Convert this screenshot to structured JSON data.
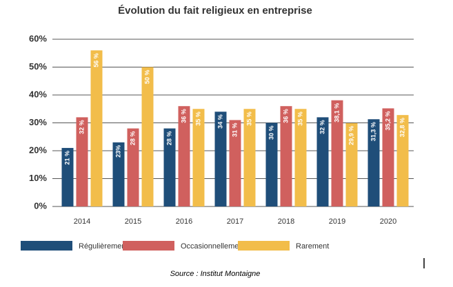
{
  "chart_data": {
    "type": "bar",
    "title": "Évolution du fait religieux en entreprise",
    "categories": [
      "2014",
      "2015",
      "2016",
      "2017",
      "2018",
      "2019",
      "2020"
    ],
    "series": [
      {
        "name": "Régulièrement",
        "color": "#1f4e79",
        "values": [
          21,
          23,
          28,
          34,
          30,
          32,
          31.3
        ],
        "value_labels": [
          "21 %",
          "23%",
          "28 %",
          "34 %",
          "30 %",
          "32 %",
          "31,3 %"
        ]
      },
      {
        "name": "Occasionnellement",
        "color": "#d0605e",
        "values": [
          32,
          28,
          36,
          31,
          36,
          38.1,
          35.2
        ],
        "value_labels": [
          "32 %",
          "28 %",
          "36 %",
          "31 %",
          "36 %",
          "38,1 %",
          "35,2 %"
        ]
      },
      {
        "name": "Rarement",
        "color": "#f2bd4a",
        "values": [
          56,
          50,
          35,
          35,
          35,
          29.9,
          32.8
        ],
        "value_labels": [
          "56 %",
          "50 %",
          "35 %",
          "35 %",
          "35 %",
          "29,9 %",
          "32,8 %"
        ]
      }
    ],
    "ylim": [
      0,
      60
    ],
    "yticks": [
      {
        "value": 0,
        "label": "0%"
      },
      {
        "value": 10,
        "label": "10%"
      },
      {
        "value": 20,
        "label": "20%"
      },
      {
        "value": 30,
        "label": "30%"
      },
      {
        "value": 40,
        "label": "40%"
      },
      {
        "value": 50,
        "label": "50%"
      },
      {
        "value": 60,
        "label": "60%"
      }
    ],
    "grid": true,
    "source": "Source : Institut Montaigne"
  }
}
